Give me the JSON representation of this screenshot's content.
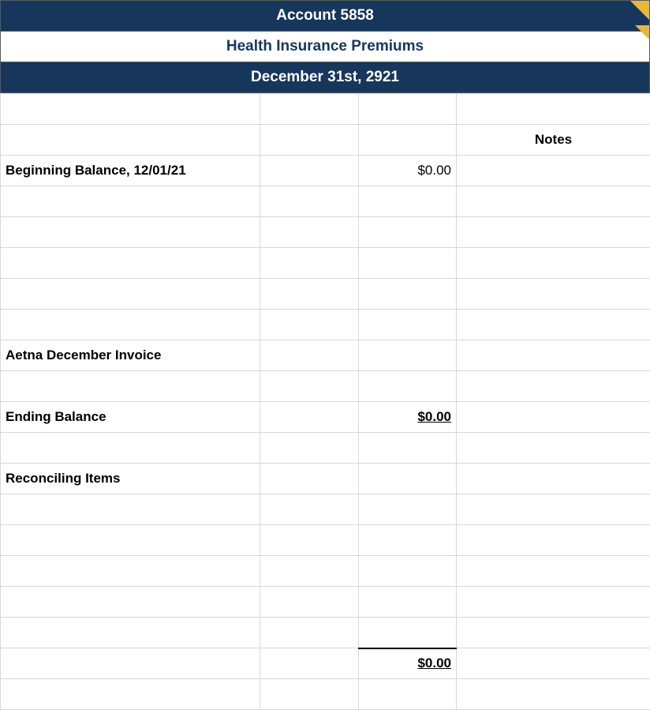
{
  "header": {
    "account_title": "Account 5858",
    "subtitle": "Health Insurance Premiums",
    "period": "December 31st, 2921",
    "header_bg": "#16365c",
    "header_fg": "#ffffff",
    "subtitle_fg": "#16365c",
    "corner_color": "#e8b63a"
  },
  "sheet": {
    "notes_header": "Notes",
    "rows": {
      "beginning_balance_label": "Beginning Balance, 12/01/21",
      "beginning_balance_value": "$0.00",
      "aetna_label": "Aetna December Invoice",
      "ending_balance_label": "Ending Balance",
      "ending_balance_value": "$0.00",
      "reconciling_label": "Reconciling Items",
      "total_value": "$0.00"
    },
    "grid_border_color": "#d8d8d8",
    "font_family": "Arial",
    "label_fontsize": 17
  }
}
